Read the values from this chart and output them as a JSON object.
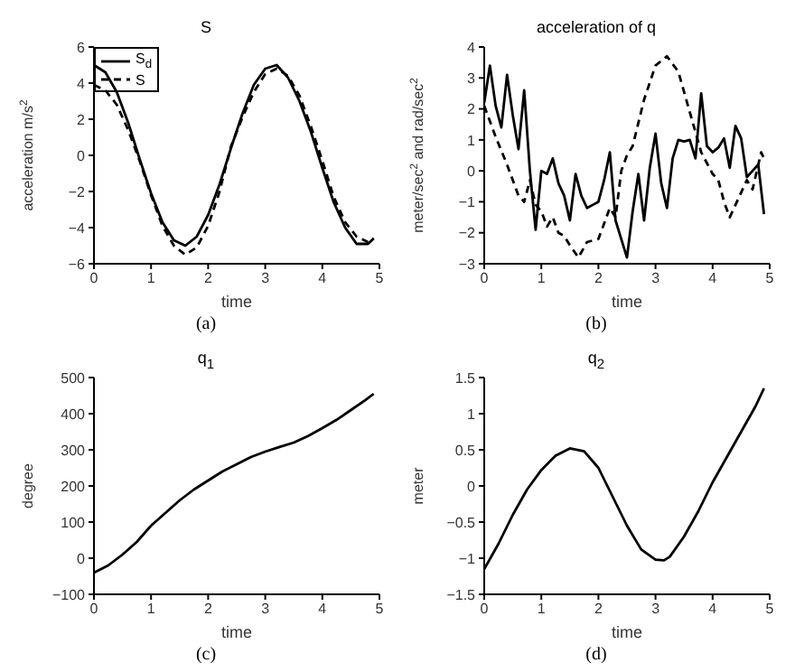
{
  "chart_data": [
    {
      "type": "line",
      "title": "S",
      "xlabel": "time",
      "ylabel": "acceleration m/s$^{2}$",
      "annotations": [
        "(a)"
      ],
      "xlim": [
        0,
        5
      ],
      "xticks": [
        0,
        1,
        2,
        3,
        4,
        5
      ],
      "ylim": [
        -6,
        6
      ],
      "yticks": [
        -6,
        -4,
        -2,
        0,
        2,
        4,
        6
      ],
      "legend": "top left",
      "series": [
        {
          "name": "S$_{d}$",
          "color": "#000000",
          "line_style": "solid",
          "x": [
            0,
            0.2,
            0.4,
            0.6,
            0.8,
            1.0,
            1.2,
            1.4,
            1.6,
            1.8,
            2.0,
            2.2,
            2.4,
            2.6,
            2.8,
            3.0,
            3.2,
            3.4,
            3.6,
            3.8,
            4.0,
            4.2,
            4.4,
            4.6,
            4.8,
            4.9
          ],
          "values": [
            5.0,
            4.6,
            3.5,
            1.8,
            -0.2,
            -2.1,
            -3.7,
            -4.7,
            -5.0,
            -4.5,
            -3.3,
            -1.6,
            0.4,
            2.3,
            3.9,
            4.8,
            5.0,
            4.3,
            3.0,
            1.3,
            -0.7,
            -2.6,
            -4.0,
            -4.9,
            -4.9,
            -4.6
          ]
        },
        {
          "name": "S",
          "color": "#000000",
          "line_style": "dashed",
          "x": [
            0,
            0.2,
            0.4,
            0.6,
            0.8,
            1.0,
            1.2,
            1.4,
            1.6,
            1.8,
            2.0,
            2.2,
            2.4,
            2.6,
            2.8,
            3.0,
            3.2,
            3.4,
            3.6,
            3.8,
            4.0,
            4.2,
            4.4,
            4.6,
            4.8,
            4.9
          ],
          "values": [
            3.9,
            3.6,
            2.8,
            1.4,
            -0.3,
            -2.2,
            -3.9,
            -5.0,
            -5.5,
            -5.1,
            -3.9,
            -2.0,
            0.5,
            2.1,
            3.5,
            4.5,
            4.8,
            4.4,
            3.3,
            1.6,
            -0.3,
            -2.3,
            -3.7,
            -4.5,
            -4.8,
            -4.6
          ]
        }
      ]
    },
    {
      "type": "line",
      "title": "acceleration of q",
      "xlabel": "time",
      "ylabel": "meter/sec$^{2}$ and rad/sec$^{2}$",
      "annotations": [
        "(b)"
      ],
      "xlim": [
        0,
        5
      ],
      "xticks": [
        0,
        1,
        2,
        3,
        4,
        5
      ],
      "ylim": [
        -3,
        4
      ],
      "yticks": [
        -3,
        -2,
        -1,
        0,
        1,
        2,
        3,
        4
      ],
      "series": [
        {
          "color": "#000000",
          "line_style": "solid",
          "x": [
            0,
            0.1,
            0.2,
            0.3,
            0.4,
            0.5,
            0.6,
            0.7,
            0.8,
            0.9,
            1.0,
            1.1,
            1.2,
            1.3,
            1.4,
            1.5,
            1.6,
            1.7,
            1.8,
            1.9,
            2.0,
            2.1,
            2.2,
            2.3,
            2.4,
            2.5,
            2.6,
            2.7,
            2.8,
            2.9,
            3.0,
            3.1,
            3.2,
            3.3,
            3.4,
            3.5,
            3.6,
            3.7,
            3.8,
            3.9,
            4.0,
            4.1,
            4.2,
            4.3,
            4.4,
            4.5,
            4.6,
            4.7,
            4.8,
            4.9
          ],
          "values": [
            2.2,
            3.4,
            2.1,
            1.4,
            3.1,
            1.8,
            0.7,
            2.6,
            0.0,
            -1.9,
            0.0,
            -0.1,
            0.4,
            -0.4,
            -0.8,
            -1.6,
            -0.1,
            -0.8,
            -1.2,
            -1.1,
            -1.0,
            -0.3,
            0.6,
            -1.6,
            -2.2,
            -2.8,
            -1.3,
            -0.1,
            -1.6,
            0.1,
            1.2,
            -0.4,
            -1.2,
            0.4,
            1.0,
            0.95,
            1.0,
            0.4,
            2.5,
            0.8,
            0.6,
            0.75,
            1.05,
            0.1,
            1.45,
            1.05,
            -0.2,
            0.0,
            0.2,
            -1.4
          ]
        },
        {
          "color": "#000000",
          "line_style": "dashed",
          "x": [
            0,
            0.2,
            0.4,
            0.6,
            0.7,
            0.8,
            0.9,
            1.0,
            1.1,
            1.2,
            1.3,
            1.4,
            1.5,
            1.65,
            1.8,
            2.0,
            2.1,
            2.2,
            2.3,
            2.4,
            2.5,
            2.6,
            2.8,
            3.0,
            3.2,
            3.4,
            3.6,
            3.8,
            4.0,
            4.1,
            4.2,
            4.3,
            4.4,
            4.6,
            4.7,
            4.8,
            4.85,
            4.9
          ],
          "values": [
            2.1,
            1.1,
            0.2,
            -0.8,
            -1.0,
            -0.3,
            -1.1,
            -1.3,
            -1.8,
            -1.5,
            -2.0,
            -2.1,
            -2.4,
            -2.8,
            -2.3,
            -2.2,
            -1.7,
            -1.2,
            -1.5,
            0.0,
            0.5,
            0.8,
            2.3,
            3.4,
            3.7,
            3.2,
            1.9,
            0.6,
            -0.1,
            -0.3,
            -1.0,
            -1.5,
            -1.1,
            -0.3,
            -0.6,
            0.2,
            0.6,
            0.4
          ]
        }
      ]
    },
    {
      "type": "line",
      "title": "q$_{1}$",
      "xlabel": "time",
      "ylabel": "degree",
      "annotations": [
        "(c)"
      ],
      "xlim": [
        0,
        5
      ],
      "xticks": [
        0,
        1,
        2,
        3,
        4,
        5
      ],
      "ylim": [
        -100,
        500
      ],
      "yticks": [
        -100,
        0,
        100,
        200,
        300,
        400,
        500
      ],
      "series": [
        {
          "color": "#000000",
          "line_style": "solid",
          "x": [
            0,
            0.25,
            0.5,
            0.75,
            1.0,
            1.25,
            1.5,
            1.75,
            2.0,
            2.25,
            2.5,
            2.75,
            3.0,
            3.25,
            3.5,
            3.75,
            4.0,
            4.25,
            4.5,
            4.75,
            4.9
          ],
          "values": [
            -40,
            -20,
            10,
            45,
            90,
            125,
            160,
            190,
            215,
            240,
            260,
            280,
            295,
            308,
            320,
            338,
            360,
            383,
            410,
            437,
            455
          ]
        }
      ]
    },
    {
      "type": "line",
      "title": "q$_{2}$",
      "xlabel": "time",
      "ylabel": "meter",
      "annotations": [
        "(d)"
      ],
      "xlim": [
        0,
        5
      ],
      "xticks": [
        0,
        1,
        2,
        3,
        4,
        5
      ],
      "ylim": [
        -1.5,
        1.5
      ],
      "yticks": [
        -1.5,
        -1,
        -0.5,
        0,
        0.5,
        1,
        1.5
      ],
      "series": [
        {
          "color": "#000000",
          "line_style": "solid",
          "x": [
            0,
            0.25,
            0.5,
            0.75,
            1.0,
            1.25,
            1.5,
            1.75,
            2.0,
            2.25,
            2.5,
            2.75,
            3.0,
            3.15,
            3.25,
            3.5,
            3.75,
            4.0,
            4.25,
            4.5,
            4.75,
            4.9
          ],
          "values": [
            -1.15,
            -0.8,
            -0.4,
            -0.05,
            0.22,
            0.42,
            0.52,
            0.48,
            0.25,
            -0.15,
            -0.55,
            -0.88,
            -1.02,
            -1.03,
            -0.98,
            -0.7,
            -0.35,
            0.05,
            0.4,
            0.75,
            1.1,
            1.35
          ]
        }
      ]
    }
  ]
}
